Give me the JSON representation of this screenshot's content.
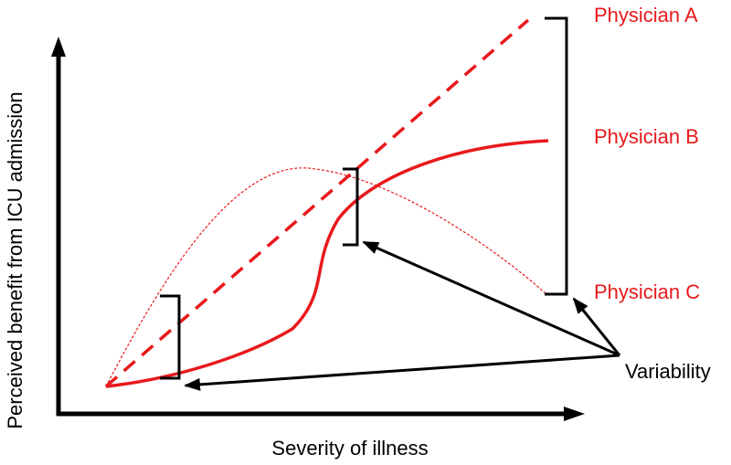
{
  "axes": {
    "y_label": "Perceived benefit from ICU admission",
    "x_label": "Severity of illness"
  },
  "curves": [
    {
      "label": "Physician A",
      "style": "dashed"
    },
    {
      "label": "Physician B",
      "style": "solid"
    },
    {
      "label": "Physician C",
      "style": "thin-dashed"
    }
  ],
  "annotation": {
    "label": "Variability"
  },
  "colors": {
    "curve": "#e8191c",
    "axis": "#000000",
    "text": "#000000"
  }
}
